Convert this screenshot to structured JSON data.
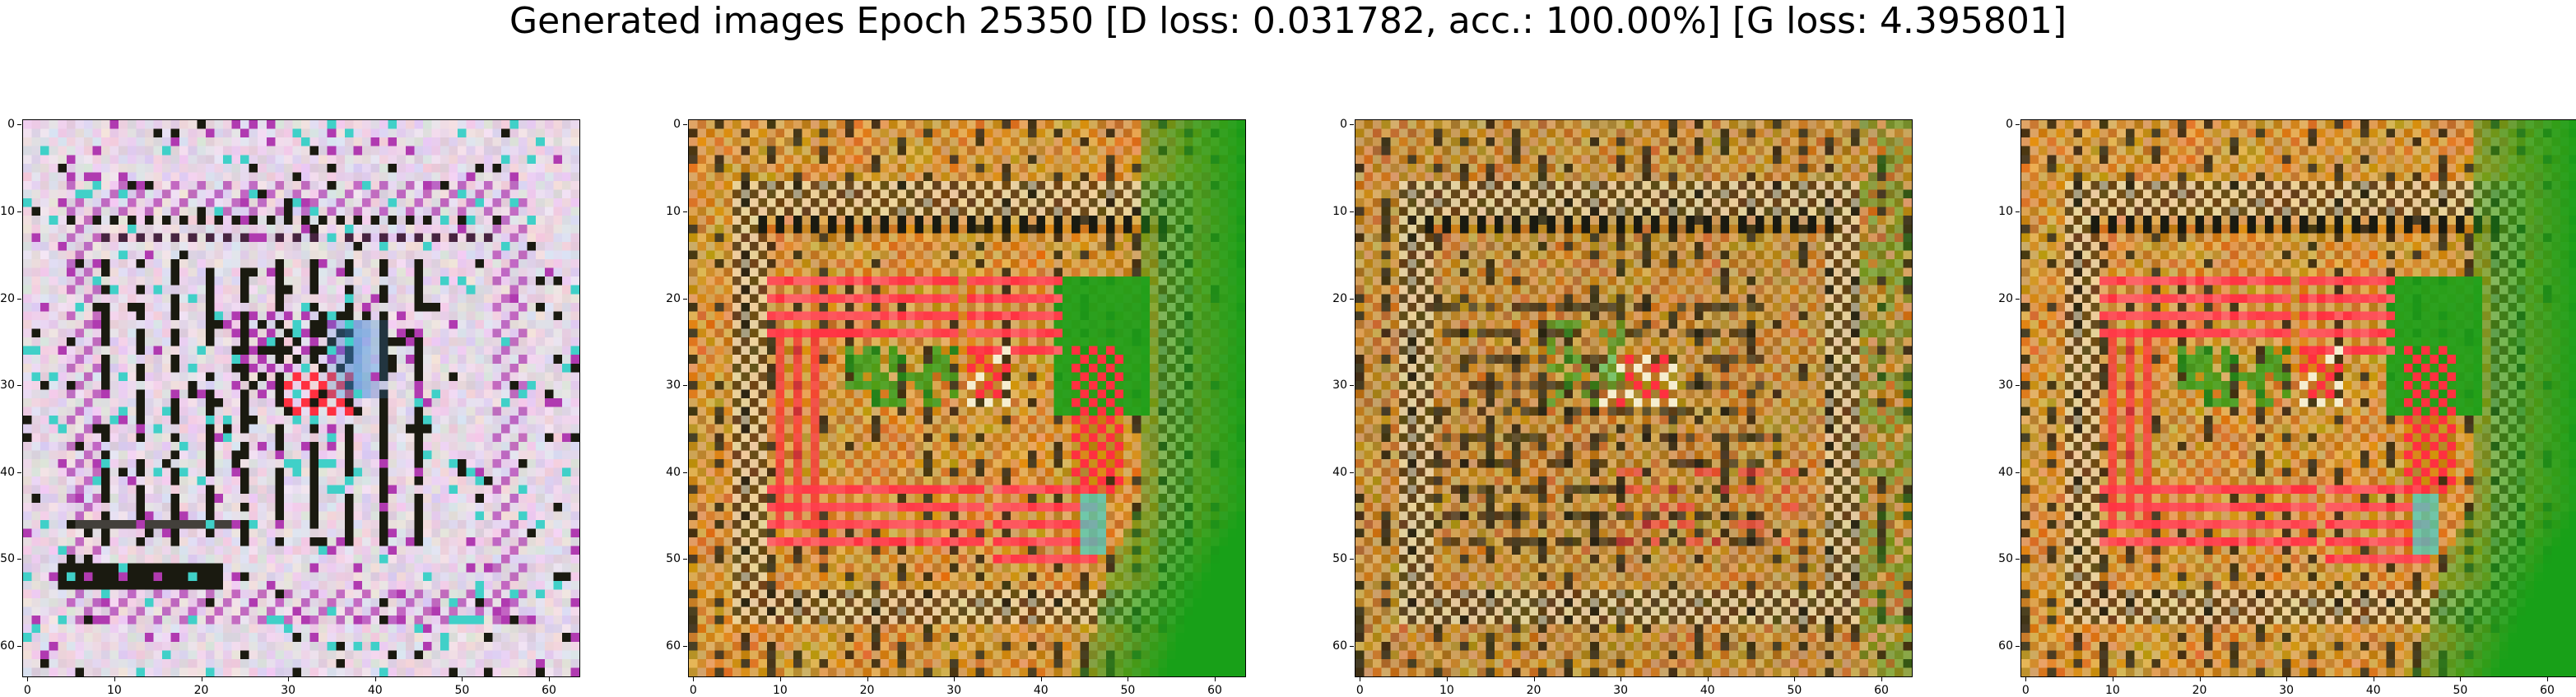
{
  "title": "Generated images Epoch 25350 [D loss: 0.031782, acc.: 100.00%] [G loss: 4.395801]",
  "axes": {
    "ticks": [
      "0",
      "10",
      "20",
      "30",
      "40",
      "50",
      "60"
    ],
    "image_size": 64
  },
  "panels": [
    {
      "id": 1,
      "style": "pale"
    },
    {
      "id": 2,
      "style": "bright"
    },
    {
      "id": 3,
      "style": "dark"
    },
    {
      "id": 4,
      "style": "bright"
    }
  ],
  "colors": {
    "pale_bg": "#e6d7e6",
    "magenta": "#b03ab0",
    "ochre": "#c48a1e",
    "orange": "#d9781f",
    "red": "#ff3040",
    "green": "#18a018",
    "dark": "#1a1a10",
    "cream": "#f6eed0",
    "cyan": "#40d0c8",
    "blue": "#3a8ad8"
  }
}
